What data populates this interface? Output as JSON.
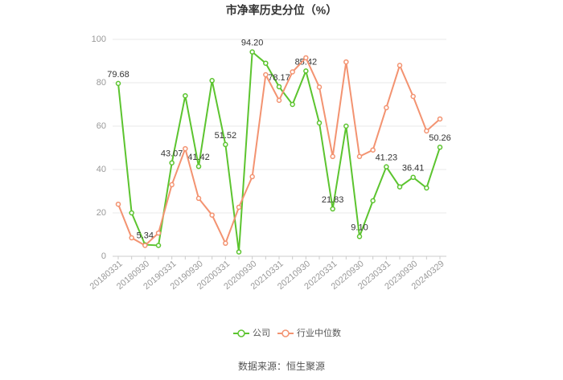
{
  "chart_data": {
    "type": "line",
    "title": "市净率历史分位（%）",
    "categories": [
      "20180331",
      null,
      "20180930",
      null,
      "20190331",
      null,
      "20190930",
      null,
      "20200331",
      null,
      "20200930",
      null,
      "20210331",
      null,
      "20210930",
      null,
      "20220331",
      null,
      "20220930",
      null,
      "20230331",
      null,
      "20230930",
      null,
      "20240329"
    ],
    "series": [
      {
        "name": "公司",
        "color": "#5cc42f",
        "values": [
          79.68,
          20,
          5.34,
          5,
          43.07,
          74,
          41.42,
          81,
          51.52,
          2,
          94.2,
          89,
          78.17,
          70,
          85.42,
          61.5,
          21.83,
          60,
          9.1,
          25.6,
          41.23,
          32,
          36.41,
          31.5,
          50.26
        ],
        "value_labels": [
          "79.68",
          null,
          "5.34",
          null,
          "43.07",
          null,
          "41.42",
          null,
          "51.52",
          null,
          "94.20",
          null,
          "78.17",
          null,
          "85.42",
          null,
          "21.83",
          null,
          "9.10",
          null,
          "41.23",
          null,
          "36.41",
          null,
          "50.26"
        ]
      },
      {
        "name": "行业中位数",
        "color": "#f39371",
        "values": [
          24,
          8.5,
          5,
          10.7,
          33,
          49.6,
          26.7,
          19,
          6,
          22.6,
          36.7,
          83.7,
          71.9,
          85,
          91.5,
          78,
          46,
          89.6,
          46,
          49,
          68.5,
          88,
          73.7,
          57.8,
          63.3
        ]
      }
    ],
    "ylim": [
      0,
      100
    ],
    "yticks": [
      0,
      20,
      40,
      60,
      80,
      100
    ],
    "grid": true,
    "legend": "bottom",
    "source": "数据来源：恒生聚源"
  }
}
